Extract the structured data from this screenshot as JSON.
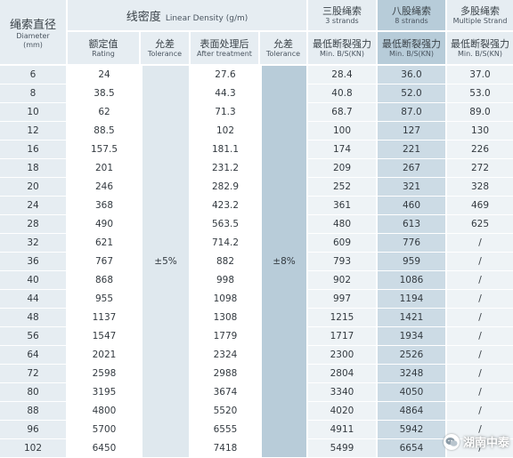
{
  "header": {
    "diameter_cn": "绳索直径",
    "diameter_en": "Diameter",
    "diameter_unit": "(mm)",
    "linear_density_cn": "线密度",
    "linear_density_en": "Linear Density (g/m)",
    "rating_cn": "额定值",
    "rating_en": "Rating",
    "tolerance_cn": "允差",
    "tolerance_en": "Tolerance",
    "after_cn": "表面处理后",
    "after_en": "After treatment",
    "strand3_cn": "三股绳索",
    "strand3_en": "3 strands",
    "strand8_cn": "八股绳索",
    "strand8_en": "8 strands",
    "multi_cn": "多股绳索",
    "multi_en": "Multiple Strand",
    "mbs_cn": "最低断裂强力",
    "mbs_en": "Min. B/S(KN)"
  },
  "tolerance_linear": "±5%",
  "tolerance_treated": "±8%",
  "rows": [
    {
      "d": "6",
      "rating": "24",
      "after": "27.6",
      "s3": "28.4",
      "s8": "36.0",
      "ms": "37.0"
    },
    {
      "d": "8",
      "rating": "38.5",
      "after": "44.3",
      "s3": "40.8",
      "s8": "52.0",
      "ms": "53.0"
    },
    {
      "d": "10",
      "rating": "62",
      "after": "71.3",
      "s3": "68.7",
      "s8": "87.0",
      "ms": "89.0"
    },
    {
      "d": "12",
      "rating": "88.5",
      "after": "102",
      "s3": "100",
      "s8": "127",
      "ms": "130"
    },
    {
      "d": "16",
      "rating": "157.5",
      "after": "181.1",
      "s3": "174",
      "s8": "221",
      "ms": "226"
    },
    {
      "d": "18",
      "rating": "201",
      "after": "231.2",
      "s3": "209",
      "s8": "267",
      "ms": "272"
    },
    {
      "d": "20",
      "rating": "246",
      "after": "282.9",
      "s3": "252",
      "s8": "321",
      "ms": "328"
    },
    {
      "d": "24",
      "rating": "368",
      "after": "423.2",
      "s3": "361",
      "s8": "460",
      "ms": "469"
    },
    {
      "d": "28",
      "rating": "490",
      "after": "563.5",
      "s3": "480",
      "s8": "613",
      "ms": "625"
    },
    {
      "d": "32",
      "rating": "621",
      "after": "714.2",
      "s3": "609",
      "s8": "776",
      "ms": "/"
    },
    {
      "d": "36",
      "rating": "767",
      "after": "882",
      "s3": "793",
      "s8": "959",
      "ms": "/"
    },
    {
      "d": "40",
      "rating": "868",
      "after": "998",
      "s3": "902",
      "s8": "1086",
      "ms": "/"
    },
    {
      "d": "44",
      "rating": "955",
      "after": "1098",
      "s3": "997",
      "s8": "1194",
      "ms": "/"
    },
    {
      "d": "48",
      "rating": "1137",
      "after": "1308",
      "s3": "1215",
      "s8": "1421",
      "ms": "/"
    },
    {
      "d": "56",
      "rating": "1547",
      "after": "1779",
      "s3": "1717",
      "s8": "1934",
      "ms": "/"
    },
    {
      "d": "64",
      "rating": "2021",
      "after": "2324",
      "s3": "2300",
      "s8": "2526",
      "ms": "/"
    },
    {
      "d": "72",
      "rating": "2598",
      "after": "2988",
      "s3": "2804",
      "s8": "3248",
      "ms": "/"
    },
    {
      "d": "80",
      "rating": "3195",
      "after": "3674",
      "s3": "3340",
      "s8": "4050",
      "ms": "/"
    },
    {
      "d": "88",
      "rating": "4800",
      "after": "5520",
      "s3": "4020",
      "s8": "4864",
      "ms": "/"
    },
    {
      "d": "96",
      "rating": "5700",
      "after": "6555",
      "s3": "4911",
      "s8": "5942",
      "ms": "/"
    },
    {
      "d": "102",
      "rating": "6450",
      "after": "7418",
      "s3": "5499",
      "s8": "6654",
      "ms": "/"
    }
  ],
  "watermark": {
    "text": "湖南中泰",
    "icon": "wechat-icon"
  }
}
